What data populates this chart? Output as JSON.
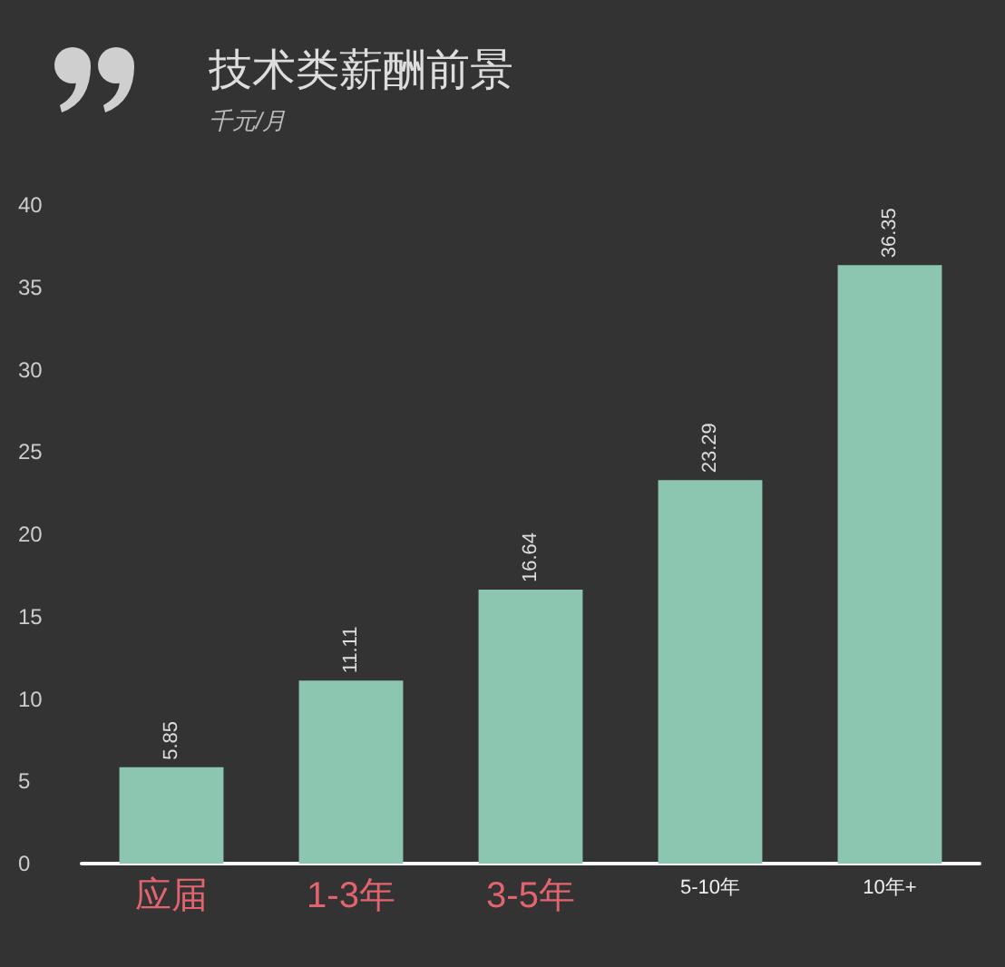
{
  "chart_data": {
    "type": "bar",
    "title": "技术类薪酬前景",
    "subtitle": "千元/月",
    "categories": [
      "应届",
      "1-3年",
      "3-5年",
      "5-10年",
      "10年+"
    ],
    "values": [
      5.85,
      11.11,
      16.64,
      23.29,
      36.35
    ],
    "color": "#8cc5b0",
    "ylim": [
      0,
      40
    ],
    "yticks": [
      0,
      5,
      10,
      15,
      20,
      25,
      30,
      35,
      40
    ],
    "data_labels": true
  }
}
